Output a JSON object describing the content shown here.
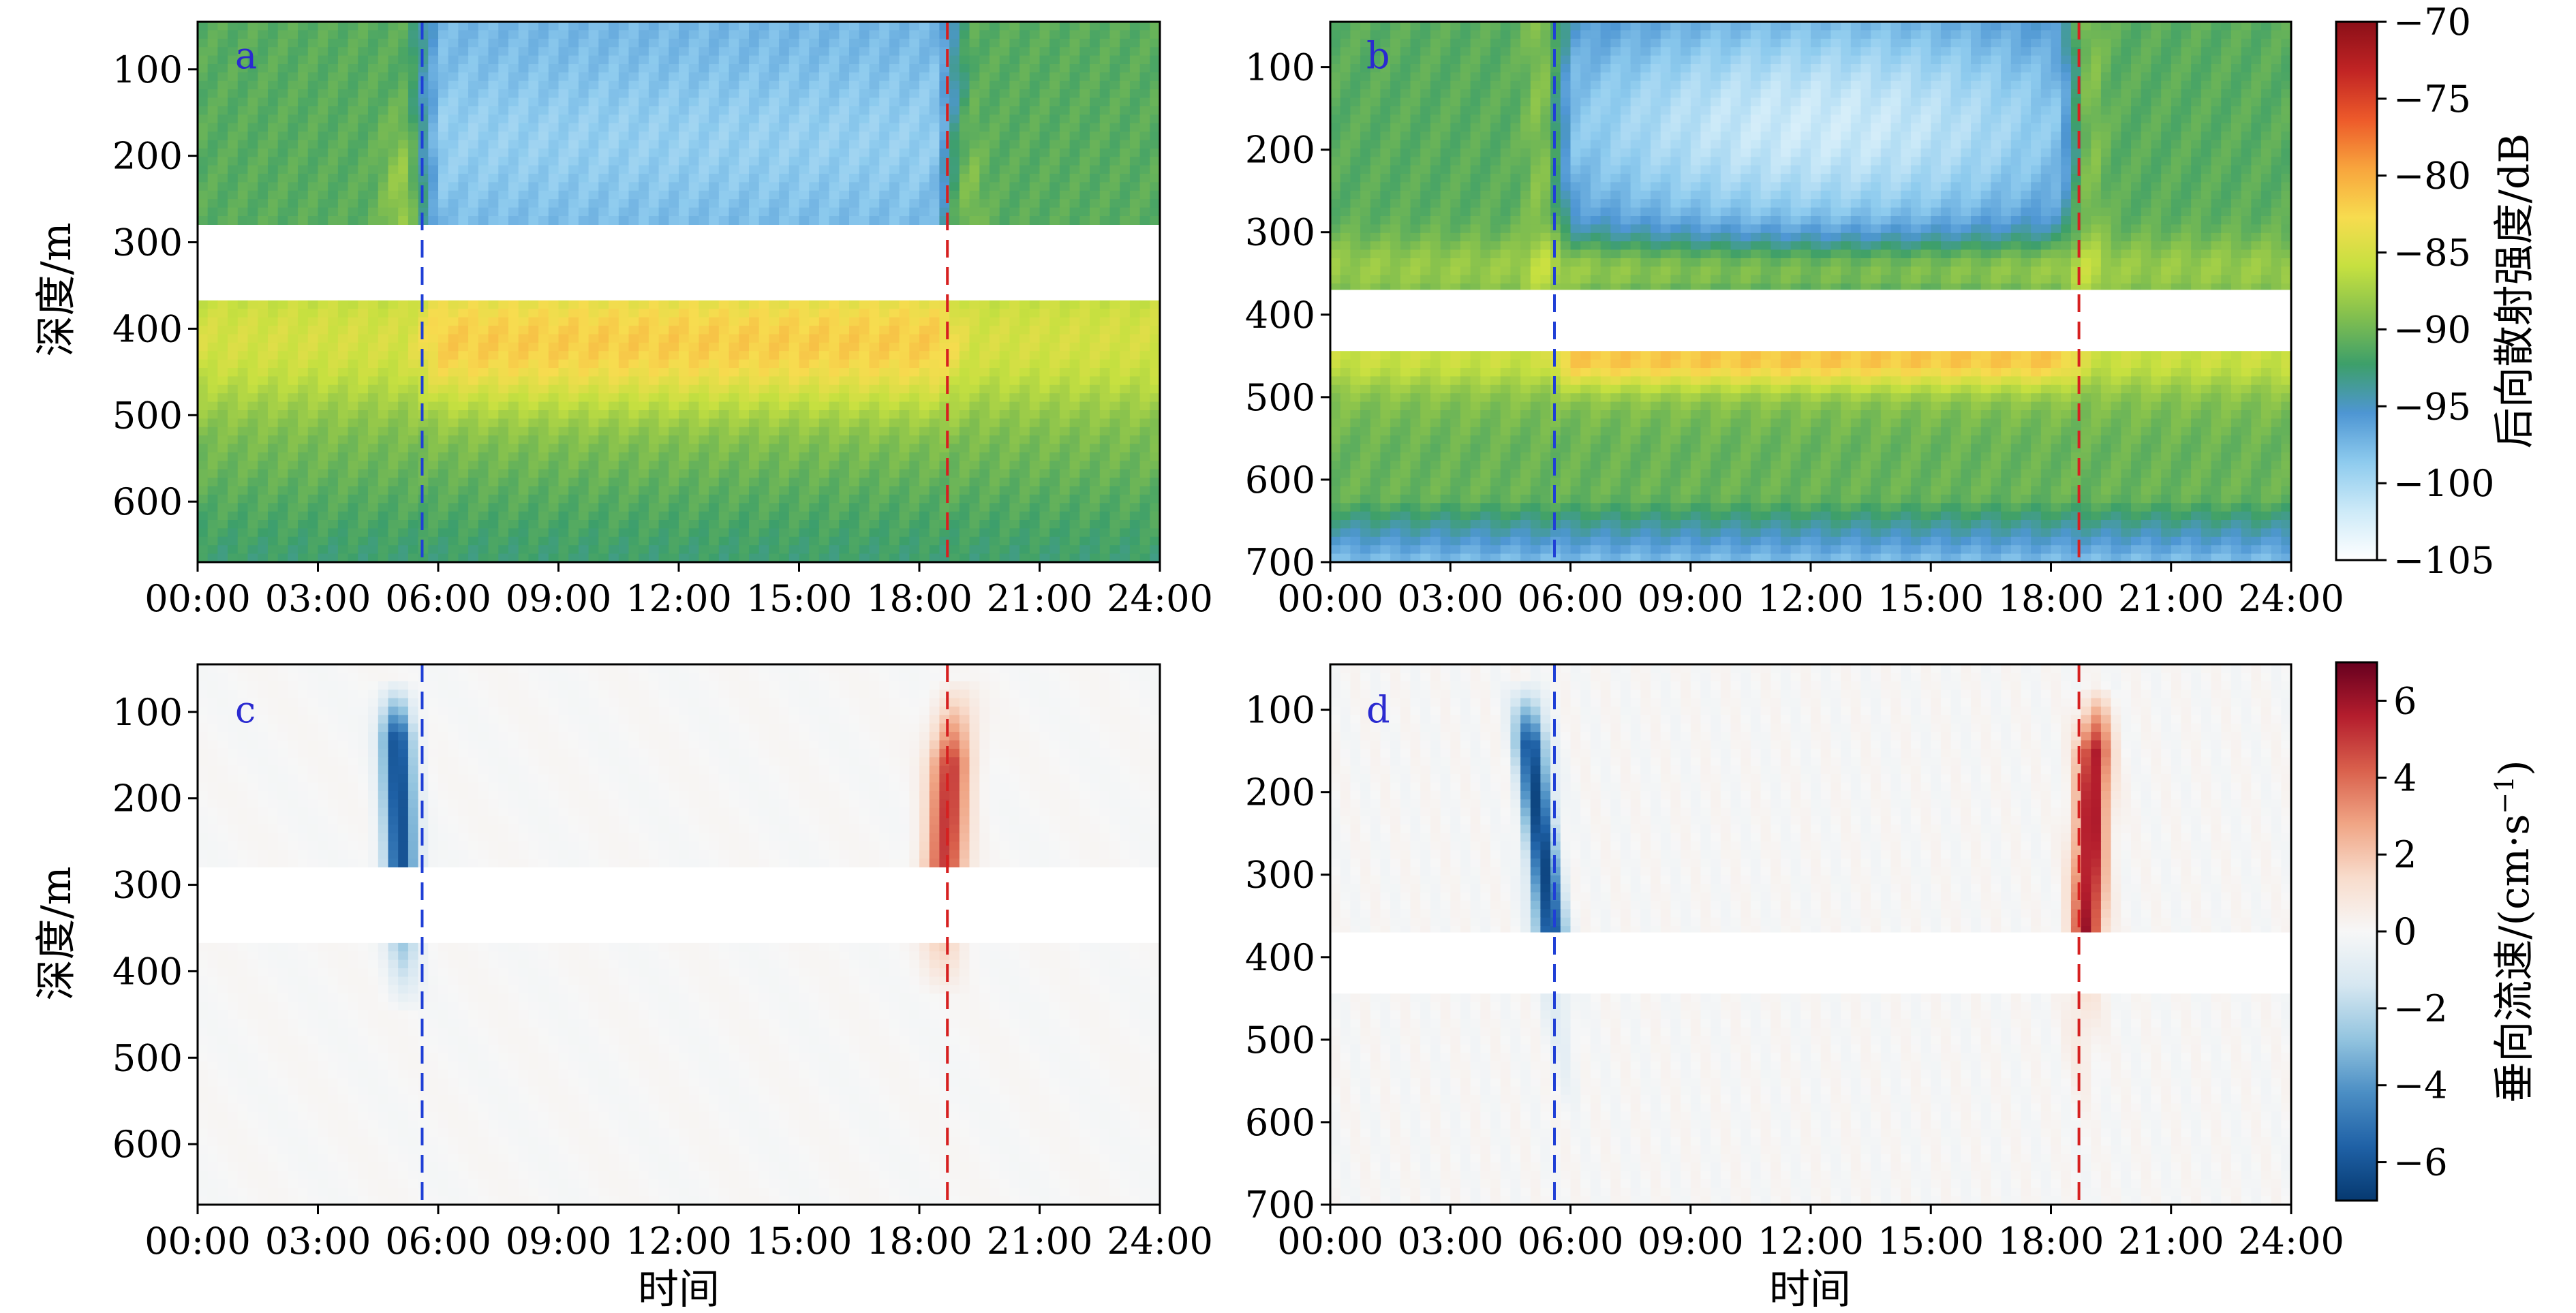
{
  "chart_data": [
    {
      "type": "heatmap",
      "panel_label": "a",
      "variable": "backscatter",
      "xlabel": "",
      "ylabel": "深度/m",
      "xlim": [
        0,
        24
      ],
      "ylim": [
        670,
        45
      ],
      "x_ticks": [
        "00:00",
        "03:00",
        "06:00",
        "09:00",
        "12:00",
        "15:00",
        "18:00",
        "21:00",
        "24:00"
      ],
      "y_ticks": [
        100,
        200,
        300,
        400,
        500,
        600
      ],
      "gap": [
        280,
        365
      ],
      "sunrise": 5.6,
      "sunset": 18.7,
      "sunrise_color": "#1f3fd6",
      "sunset_color": "#d62020"
    },
    {
      "type": "heatmap",
      "panel_label": "b",
      "variable": "backscatter",
      "xlabel": "",
      "ylabel": "",
      "xlim": [
        0,
        24
      ],
      "ylim": [
        700,
        45
      ],
      "x_ticks": [
        "00:00",
        "03:00",
        "06:00",
        "09:00",
        "12:00",
        "15:00",
        "18:00",
        "21:00",
        "24:00"
      ],
      "y_ticks": [
        100,
        200,
        300,
        400,
        500,
        600,
        700
      ],
      "gap": [
        370,
        440
      ],
      "sunrise": 5.6,
      "sunset": 18.7,
      "sunrise_color": "#1f3fd6",
      "sunset_color": "#d62020"
    },
    {
      "type": "heatmap",
      "panel_label": "c",
      "variable": "vertical_velocity",
      "xlabel": "时间",
      "ylabel": "深度/m",
      "xlim": [
        0,
        24
      ],
      "ylim": [
        670,
        45
      ],
      "x_ticks": [
        "00:00",
        "03:00",
        "06:00",
        "09:00",
        "12:00",
        "15:00",
        "18:00",
        "21:00",
        "24:00"
      ],
      "y_ticks": [
        100,
        200,
        300,
        400,
        500,
        600
      ],
      "gap": [
        280,
        365
      ],
      "sunrise": 5.6,
      "sunset": 18.7,
      "sunrise_color": "#1f3fd6",
      "sunset_color": "#d62020"
    },
    {
      "type": "heatmap",
      "panel_label": "d",
      "variable": "vertical_velocity",
      "xlabel": "时间",
      "ylabel": "",
      "xlim": [
        0,
        24
      ],
      "ylim": [
        700,
        45
      ],
      "x_ticks": [
        "00:00",
        "03:00",
        "06:00",
        "09:00",
        "12:00",
        "15:00",
        "18:00",
        "21:00",
        "24:00"
      ],
      "y_ticks": [
        100,
        200,
        300,
        400,
        500,
        600,
        700
      ],
      "gap": [
        370,
        440
      ],
      "sunrise": 5.6,
      "sunset": 18.7,
      "sunrise_color": "#1f3fd6",
      "sunset_color": "#d62020"
    }
  ],
  "colorbars": {
    "backscatter": {
      "label": "后向散射强度/dB",
      "range": [
        -105,
        -70
      ],
      "ticks": [
        "−70",
        "−75",
        "−80",
        "−85",
        "−90",
        "−95",
        "−100",
        "−105"
      ],
      "colormap": [
        "#ffffff",
        "#cdeaf8",
        "#8ecbee",
        "#4e96d3",
        "#3d9f6a",
        "#84c04e",
        "#c6e040",
        "#f7dc4f",
        "#f8a53d",
        "#ed5a2a",
        "#c12424",
        "#8b0f18"
      ]
    },
    "vertical_velocity": {
      "label": "垂向流速/(cm·s",
      "label_sup": "−1",
      "label_end": ")",
      "range": [
        -7,
        7
      ],
      "ticks": [
        "6",
        "4",
        "2",
        "0",
        "−2",
        "−4",
        "−6"
      ],
      "colormap": [
        "#063970",
        "#1f61a6",
        "#4b8ec4",
        "#93c4df",
        "#d6e7f1",
        "#f7f7f7",
        "#f8dccc",
        "#f0a585",
        "#d9604c",
        "#b41d2d",
        "#67001f"
      ]
    }
  }
}
